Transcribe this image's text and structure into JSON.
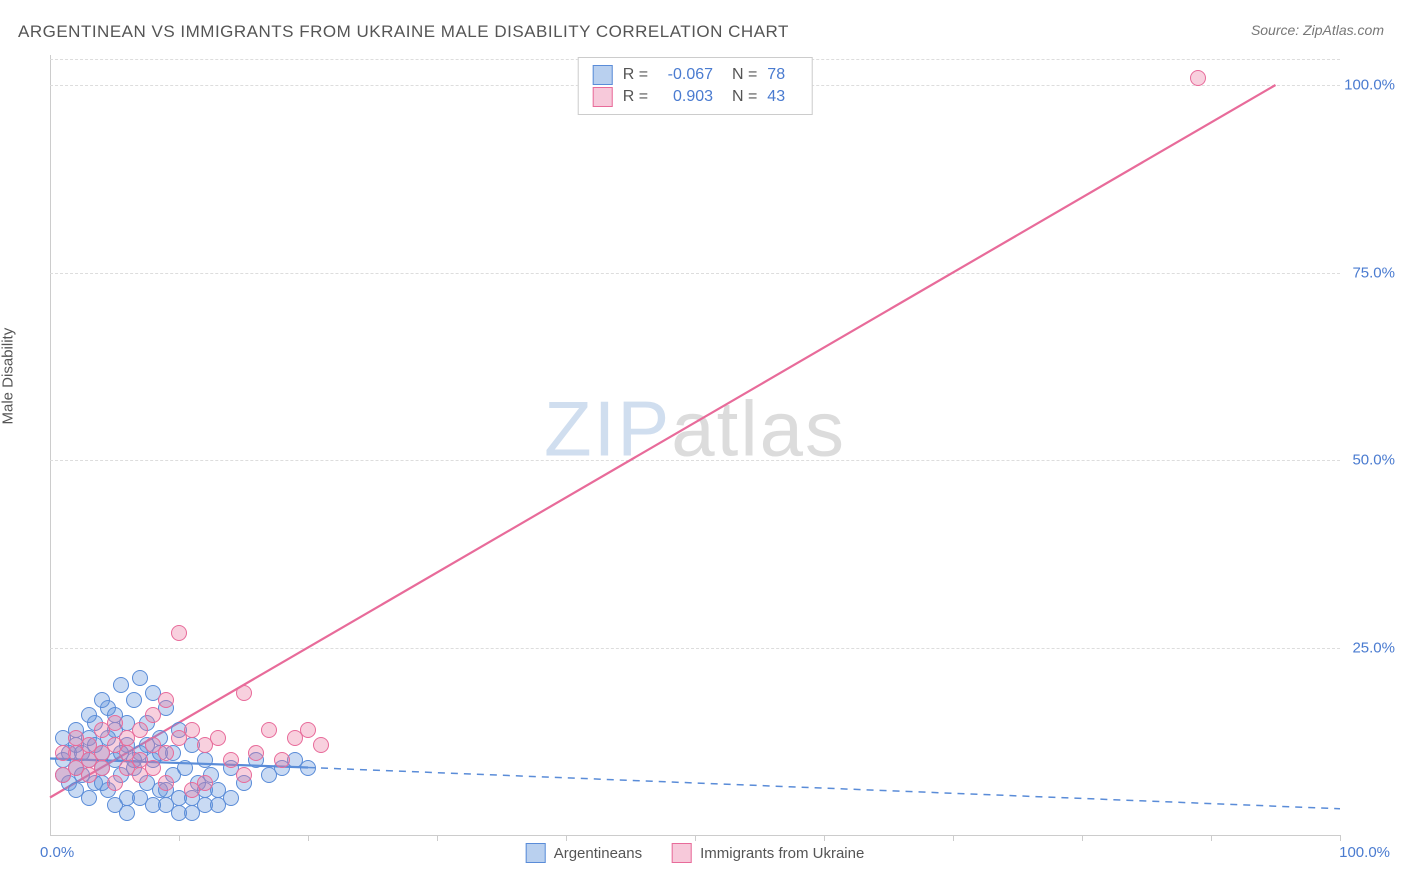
{
  "title": "ARGENTINEAN VS IMMIGRANTS FROM UKRAINE MALE DISABILITY CORRELATION CHART",
  "source": "Source: ZipAtlas.com",
  "y_axis_label": "Male Disability",
  "watermark_zip": "ZIP",
  "watermark_atlas": "atlas",
  "chart": {
    "type": "scatter",
    "xlim": [
      0,
      100
    ],
    "ylim": [
      0,
      104
    ],
    "x_start_label": "0.0%",
    "x_end_label": "100.0%",
    "y_ticks": [
      {
        "value": 25,
        "label": "25.0%"
      },
      {
        "value": 50,
        "label": "50.0%"
      },
      {
        "value": 75,
        "label": "75.0%"
      },
      {
        "value": 100,
        "label": "100.0%"
      }
    ],
    "x_tick_values": [
      10,
      20,
      30,
      40,
      50,
      60,
      70,
      80,
      90,
      100
    ],
    "grid_color": "#dddddd",
    "background_color": "#ffffff",
    "marker_radius": 7,
    "marker_opacity": 0.55,
    "line_width": 2.2,
    "series": [
      {
        "name": "Argentineans",
        "color_fill": "rgba(100,150,220,0.35)",
        "color_stroke": "#5a8cd8",
        "swatch_fill": "#b9d0ef",
        "swatch_border": "#5a8cd8",
        "r_value": "-0.067",
        "n_value": "78",
        "trend": {
          "x1": 0,
          "y1": 10.2,
          "x2": 20,
          "y2": 9.0,
          "solid_until_x": 20,
          "dash_x2": 100,
          "dash_y2": 3.5,
          "dash_color": "#5a8cd8"
        },
        "points": [
          [
            1,
            10
          ],
          [
            1.5,
            11
          ],
          [
            2,
            9
          ],
          [
            2,
            12
          ],
          [
            2.5,
            8
          ],
          [
            3,
            10
          ],
          [
            3,
            13
          ],
          [
            3.5,
            7
          ],
          [
            3.5,
            15
          ],
          [
            4,
            9
          ],
          [
            4,
            11
          ],
          [
            4.5,
            6
          ],
          [
            4.5,
            17
          ],
          [
            5,
            10
          ],
          [
            5,
            14
          ],
          [
            5.5,
            8
          ],
          [
            5.5,
            20
          ],
          [
            6,
            12
          ],
          [
            6,
            5
          ],
          [
            6.5,
            18
          ],
          [
            6.5,
            9
          ],
          [
            7,
            11
          ],
          [
            7,
            21
          ],
          [
            7.5,
            7
          ],
          [
            7.5,
            15
          ],
          [
            8,
            10
          ],
          [
            8,
            19
          ],
          [
            8.5,
            6
          ],
          [
            8.5,
            13
          ],
          [
            9,
            4
          ],
          [
            9,
            17
          ],
          [
            9.5,
            11
          ],
          [
            9.5,
            8
          ],
          [
            10,
            5
          ],
          [
            10,
            14
          ],
          [
            10.5,
            9
          ],
          [
            11,
            3
          ],
          [
            11,
            12
          ],
          [
            11.5,
            7
          ],
          [
            12,
            10
          ],
          [
            12,
            4
          ],
          [
            12.5,
            8
          ],
          [
            13,
            6
          ],
          [
            14,
            9
          ],
          [
            15,
            7
          ],
          [
            16,
            10
          ],
          [
            17,
            8
          ],
          [
            18,
            9
          ],
          [
            19,
            10
          ],
          [
            20,
            9
          ],
          [
            2,
            14
          ],
          [
            3,
            16
          ],
          [
            4,
            18
          ],
          [
            5,
            16
          ],
          [
            6,
            15
          ],
          [
            1,
            8
          ],
          [
            1.5,
            7
          ],
          [
            2.5,
            11
          ],
          [
            3.5,
            12
          ],
          [
            4.5,
            13
          ],
          [
            5.5,
            11
          ],
          [
            6.5,
            10
          ],
          [
            7.5,
            12
          ],
          [
            8.5,
            11
          ],
          [
            1,
            13
          ],
          [
            2,
            6
          ],
          [
            3,
            5
          ],
          [
            4,
            7
          ],
          [
            5,
            4
          ],
          [
            6,
            3
          ],
          [
            7,
            5
          ],
          [
            8,
            4
          ],
          [
            9,
            6
          ],
          [
            10,
            3
          ],
          [
            11,
            5
          ],
          [
            12,
            6
          ],
          [
            13,
            4
          ],
          [
            14,
            5
          ]
        ]
      },
      {
        "name": "Immigrants from Ukraine",
        "color_fill": "rgba(235,120,160,0.35)",
        "color_stroke": "#e86b9a",
        "swatch_fill": "#f7c9da",
        "swatch_border": "#e86b9a",
        "r_value": "0.903",
        "n_value": "43",
        "trend": {
          "x1": 0,
          "y1": 5,
          "x2": 95,
          "y2": 100,
          "solid_until_x": 95,
          "dash_x2": null
        },
        "points": [
          [
            1,
            8
          ],
          [
            2,
            9
          ],
          [
            2,
            11
          ],
          [
            3,
            10
          ],
          [
            3,
            12
          ],
          [
            4,
            11
          ],
          [
            4,
            14
          ],
          [
            5,
            12
          ],
          [
            5,
            15
          ],
          [
            6,
            13
          ],
          [
            6,
            9
          ],
          [
            7,
            14
          ],
          [
            7,
            10
          ],
          [
            8,
            12
          ],
          [
            8,
            16
          ],
          [
            9,
            11
          ],
          [
            9,
            18
          ],
          [
            10,
            13
          ],
          [
            10,
            27
          ],
          [
            11,
            14
          ],
          [
            12,
            12
          ],
          [
            12,
            7
          ],
          [
            13,
            13
          ],
          [
            14,
            10
          ],
          [
            15,
            19
          ],
          [
            15,
            8
          ],
          [
            16,
            11
          ],
          [
            17,
            14
          ],
          [
            18,
            10
          ],
          [
            19,
            13
          ],
          [
            20,
            14
          ],
          [
            21,
            12
          ],
          [
            1,
            11
          ],
          [
            2,
            13
          ],
          [
            3,
            8
          ],
          [
            4,
            9
          ],
          [
            5,
            7
          ],
          [
            6,
            11
          ],
          [
            7,
            8
          ],
          [
            8,
            9
          ],
          [
            9,
            7
          ],
          [
            89,
            101
          ],
          [
            11,
            6
          ]
        ]
      }
    ]
  },
  "legend_bottom": [
    {
      "label": "Argentineans",
      "fill": "#b9d0ef",
      "border": "#5a8cd8"
    },
    {
      "label": "Immigrants from Ukraine",
      "fill": "#f7c9da",
      "border": "#e86b9a"
    }
  ]
}
